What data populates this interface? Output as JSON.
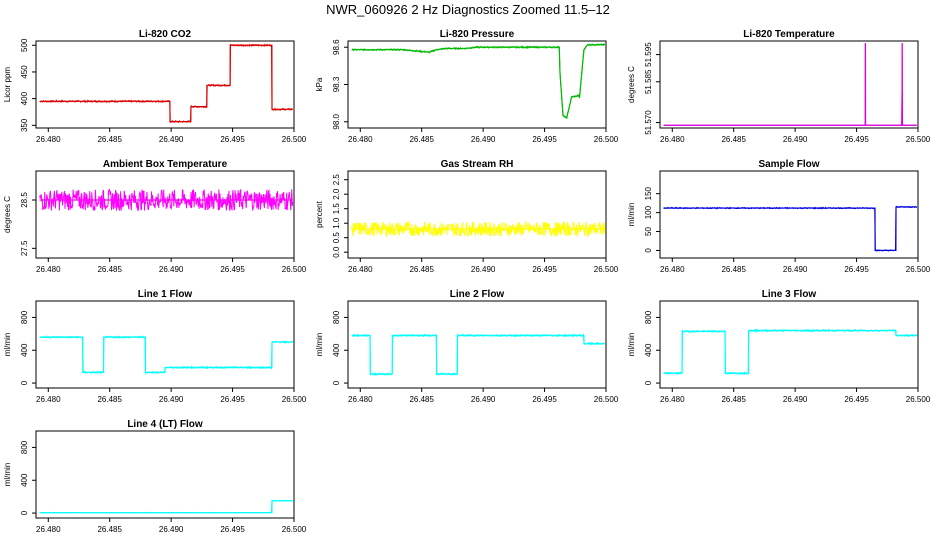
{
  "page_title": "NWR_060926  2 Hz Diagnostics Zoomed 11.5–12",
  "chart_data": [
    {
      "type": "line",
      "title": "Li-820 CO2",
      "ylabel": "Licor ppm",
      "color": "#dd0000",
      "xlim": [
        26.479,
        26.5
      ],
      "ylim": [
        345,
        508
      ],
      "xticks": [
        26.48,
        26.485,
        26.49,
        26.495,
        26.5
      ],
      "xtick_labels": [
        "26.480",
        "26.485",
        "26.490",
        "26.495",
        "26.500"
      ],
      "yticks": [
        350,
        400,
        450,
        500
      ],
      "ytick_labels": [
        "350",
        "400",
        "450",
        "500"
      ],
      "noise": 1.5,
      "x": [
        26.4793,
        26.4899,
        26.48991,
        26.4916,
        26.49161,
        26.4929,
        26.49291,
        26.4948,
        26.49481,
        26.4982,
        26.49821,
        26.4999
      ],
      "y": [
        395,
        395,
        357,
        357,
        385,
        385,
        425,
        425,
        500,
        500,
        380,
        380
      ]
    },
    {
      "type": "line",
      "title": "Li-820 Pressure",
      "ylabel": "kPa",
      "color": "#00bb00",
      "xlim": [
        26.479,
        26.5
      ],
      "ylim": [
        97.95,
        98.65
      ],
      "xticks": [
        26.48,
        26.485,
        26.49,
        26.495,
        26.5
      ],
      "xtick_labels": [
        "26.480",
        "26.485",
        "26.490",
        "26.495",
        "26.500"
      ],
      "yticks": [
        98.0,
        98.3,
        98.6
      ],
      "ytick_labels": [
        "98.0",
        "98.3",
        "98.6"
      ],
      "noise": 0.006,
      "x": [
        26.4793,
        26.4835,
        26.4845,
        26.4856,
        26.4862,
        26.487,
        26.4885,
        26.4895,
        26.492,
        26.494,
        26.4962,
        26.49625,
        26.4965,
        26.4968,
        26.4972,
        26.4978,
        26.49785,
        26.4982,
        26.4985,
        26.4999
      ],
      "y": [
        98.58,
        98.58,
        98.57,
        98.56,
        98.58,
        98.59,
        98.59,
        98.6,
        98.6,
        98.6,
        98.6,
        98.4,
        98.05,
        98.03,
        98.2,
        98.21,
        98.2,
        98.58,
        98.62,
        98.62
      ]
    },
    {
      "type": "line",
      "title": "Li-820 Temperature",
      "ylabel": "degrees C",
      "color": "#dd00dd",
      "xlim": [
        26.479,
        26.5
      ],
      "ylim": [
        51.568,
        51.6
      ],
      "xticks": [
        26.48,
        26.485,
        26.49,
        26.495,
        26.5
      ],
      "xtick_labels": [
        "26.480",
        "26.485",
        "26.490",
        "26.495",
        "26.500"
      ],
      "yticks": [
        51.57,
        51.585,
        51.595
      ],
      "ytick_labels": [
        "51.570",
        "51.585",
        "51.595"
      ],
      "noise": 0,
      "x": [
        26.4793,
        26.4957,
        26.49571,
        26.49572,
        26.49573,
        26.4987,
        26.49871,
        26.49872,
        26.49873,
        26.4999
      ],
      "y": [
        51.569,
        51.569,
        51.599,
        51.599,
        51.569,
        51.569,
        51.599,
        51.599,
        51.569,
        51.569
      ]
    },
    {
      "type": "line",
      "title": "Ambient Box Temperature",
      "ylabel": "degrees C",
      "color": "#ff00ff",
      "xlim": [
        26.479,
        26.5
      ],
      "ylim": [
        27.3,
        29.1
      ],
      "xticks": [
        26.48,
        26.485,
        26.49,
        26.495,
        26.5
      ],
      "xtick_labels": [
        "26.480",
        "26.485",
        "26.490",
        "26.495",
        "26.500"
      ],
      "yticks": [
        27.5,
        28.5
      ],
      "ytick_labels": [
        "27.5",
        "28.5"
      ],
      "noise": 0.22,
      "x": [
        26.4793,
        26.4999
      ],
      "y": [
        28.5,
        28.5
      ]
    },
    {
      "type": "line",
      "title": "Gas Stream RH",
      "ylabel": "percent",
      "color": "#ffff00",
      "xlim": [
        26.479,
        26.5
      ],
      "ylim": [
        -0.2,
        2.8
      ],
      "xticks": [
        26.48,
        26.485,
        26.49,
        26.495,
        26.5
      ],
      "xtick_labels": [
        "26.480",
        "26.485",
        "26.490",
        "26.495",
        "26.500"
      ],
      "yticks": [
        0.0,
        0.5,
        1.0,
        1.5,
        2.0,
        2.5
      ],
      "ytick_labels": [
        "0.0",
        "0.5",
        "1.0",
        "1.5",
        "2.0",
        "2.5"
      ],
      "noise": 0.25,
      "x": [
        26.4793,
        26.4999
      ],
      "y": [
        0.8,
        0.8
      ]
    },
    {
      "type": "line",
      "title": "Sample Flow",
      "ylabel": "ml/min",
      "color": "#0000dd",
      "xlim": [
        26.479,
        26.5
      ],
      "ylim": [
        -20,
        210
      ],
      "xticks": [
        26.48,
        26.485,
        26.49,
        26.495,
        26.5
      ],
      "xtick_labels": [
        "26.480",
        "26.485",
        "26.490",
        "26.495",
        "26.500"
      ],
      "yticks": [
        0,
        50,
        100,
        150
      ],
      "ytick_labels": [
        "0",
        "50",
        "100",
        "150"
      ],
      "noise": 1.5,
      "x": [
        26.4793,
        26.4965,
        26.49651,
        26.4982,
        26.49821,
        26.4999
      ],
      "y": [
        112,
        112,
        0,
        0,
        115,
        115
      ]
    },
    {
      "type": "line",
      "title": "Line 1 Flow",
      "ylabel": "ml/min",
      "color": "#00ffff",
      "xlim": [
        26.479,
        26.5
      ],
      "ylim": [
        -60,
        1000
      ],
      "xticks": [
        26.48,
        26.485,
        26.49,
        26.495,
        26.5
      ],
      "xtick_labels": [
        "26.480",
        "26.485",
        "26.490",
        "26.495",
        "26.500"
      ],
      "yticks": [
        0,
        400,
        800
      ],
      "ytick_labels": [
        "0",
        "400",
        "800"
      ],
      "noise": 10,
      "x": [
        26.4793,
        26.4828,
        26.48281,
        26.4845,
        26.48451,
        26.4879,
        26.48791,
        26.4895,
        26.48951,
        26.4982,
        26.49821,
        26.4999
      ],
      "y": [
        560,
        560,
        130,
        130,
        560,
        560,
        130,
        130,
        190,
        190,
        500,
        500
      ]
    },
    {
      "type": "line",
      "title": "Line 2 Flow",
      "ylabel": "ml/min",
      "color": "#00ffff",
      "xlim": [
        26.479,
        26.5
      ],
      "ylim": [
        -60,
        1000
      ],
      "xticks": [
        26.48,
        26.485,
        26.49,
        26.495,
        26.5
      ],
      "xtick_labels": [
        "26.480",
        "26.485",
        "26.490",
        "26.495",
        "26.500"
      ],
      "yticks": [
        0,
        400,
        800
      ],
      "ytick_labels": [
        "0",
        "400",
        "800"
      ],
      "noise": 10,
      "x": [
        26.4793,
        26.4808,
        26.48081,
        26.4826,
        26.48261,
        26.4862,
        26.48621,
        26.4879,
        26.48791,
        26.4982,
        26.49821,
        26.4999
      ],
      "y": [
        580,
        580,
        110,
        110,
        580,
        580,
        110,
        110,
        580,
        580,
        480,
        480
      ]
    },
    {
      "type": "line",
      "title": "Line 3 Flow",
      "ylabel": "ml/min",
      "color": "#00ffff",
      "xlim": [
        26.479,
        26.5
      ],
      "ylim": [
        -60,
        1000
      ],
      "xticks": [
        26.48,
        26.485,
        26.49,
        26.495,
        26.5
      ],
      "xtick_labels": [
        "26.480",
        "26.485",
        "26.490",
        "26.495",
        "26.500"
      ],
      "yticks": [
        0,
        400,
        800
      ],
      "ytick_labels": [
        "0",
        "400",
        "800"
      ],
      "noise": 10,
      "x": [
        26.4793,
        26.4808,
        26.48081,
        26.4843,
        26.48431,
        26.4862,
        26.48621,
        26.4982,
        26.49821,
        26.4999
      ],
      "y": [
        120,
        120,
        630,
        630,
        120,
        120,
        640,
        640,
        580,
        580
      ]
    },
    {
      "type": "line",
      "title": "Line 4 (LT) Flow",
      "ylabel": "ml/min",
      "color": "#00ffff",
      "xlim": [
        26.479,
        26.5
      ],
      "ylim": [
        -60,
        1000
      ],
      "xticks": [
        26.48,
        26.485,
        26.49,
        26.495,
        26.5
      ],
      "xtick_labels": [
        "26.480",
        "26.485",
        "26.490",
        "26.495",
        "26.500"
      ],
      "yticks": [
        0,
        400,
        800
      ],
      "ytick_labels": [
        "0",
        "400",
        "800"
      ],
      "noise": 3,
      "x": [
        26.4793,
        26.4982,
        26.49821,
        26.4999
      ],
      "y": [
        5,
        5,
        150,
        150
      ]
    }
  ]
}
